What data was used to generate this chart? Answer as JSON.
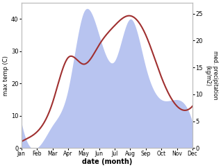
{
  "months": [
    "Jan",
    "Feb",
    "Mar",
    "Apr",
    "May",
    "Jun",
    "Jul",
    "Aug",
    "Sep",
    "Oct",
    "Nov",
    "Dec"
  ],
  "temp_values": [
    2,
    5,
    14,
    28,
    26,
    32,
    38,
    41,
    35,
    22,
    13,
    13
  ],
  "precip_values": [
    8,
    0,
    7,
    18,
    42,
    35,
    27,
    40,
    25,
    15,
    15,
    8
  ],
  "temp_color": "#a03030",
  "precip_fill_color": "#b8c4f0",
  "ylabel_left": "max temp (C)",
  "ylabel_right": "med. precipitation\n(kg/m2)",
  "xlabel": "date (month)",
  "ylim_left": [
    0,
    45
  ],
  "ylim_right": [
    0,
    27
  ],
  "yticks_left": [
    0,
    10,
    20,
    30,
    40
  ],
  "yticks_right": [
    0,
    5,
    10,
    15,
    20,
    25
  ],
  "spine_color": "#bbbbbb",
  "figsize": [
    3.18,
    2.42
  ],
  "dpi": 100
}
